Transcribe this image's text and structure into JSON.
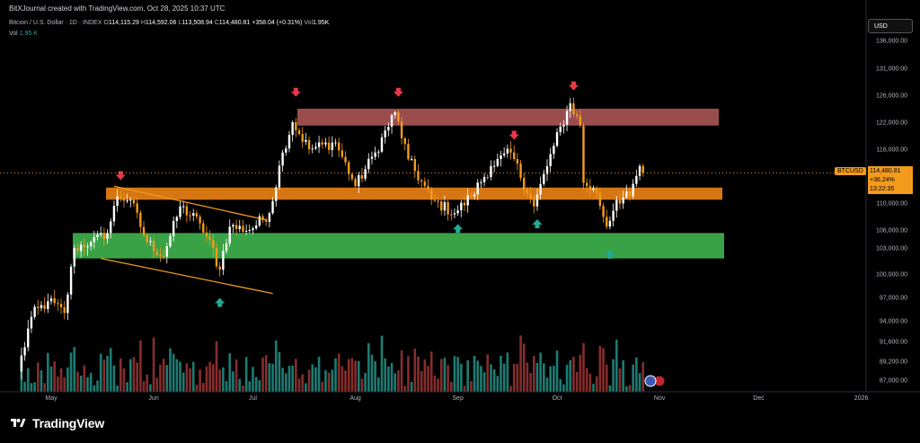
{
  "header": {
    "author_line": "BitXJournal created with TradingView.com, Oct 28, 2025 10:37 UTC"
  },
  "legend": {
    "symbol_line": "Bitcoin / U.S. Dollar · 1D · INDEX",
    "open_label": "O",
    "open_value": "114,115.29",
    "high_label": "H",
    "high_value": "114,592.06",
    "low_label": "L",
    "low_value": "113,508.94",
    "close_label": "C",
    "close_value": "114,480.81",
    "change": "+358.04 (+0.31%)",
    "vol_label": "Vol",
    "vol_value": "1.95K",
    "vol_line_label": "Vol",
    "vol_line_value": "1.95 K"
  },
  "currency_button": "USD",
  "price_badge": {
    "symbol": "BTCUSD",
    "price": "114,480.81",
    "change_pct": "+36.24%",
    "countdown": "13:22:35"
  },
  "footer": {
    "brand": "TradingView"
  },
  "colors": {
    "up": "#ffffff",
    "down": "#f29b1d",
    "vol_up": "#26a69a",
    "vol_down": "#b33c3c",
    "resistance_zone": "#b55a5a",
    "mid_zone": "#e07c14",
    "support_zone": "#3dab4a",
    "channel": "#f29b1d",
    "arrow_down": "#e63a46",
    "arrow_up": "#22ab94"
  },
  "chart_data": {
    "type": "candlestick",
    "title": "Bitcoin / U.S. Dollar · 1D · INDEX",
    "xlabel": "",
    "ylabel": "",
    "x_ticks": [
      "May",
      "Jun",
      "Jul",
      "Aug",
      "Sep",
      "Oct",
      "Nov",
      "Dec",
      "2026"
    ],
    "y_ticks": [
      "136,000.00",
      "131,000.00",
      "126,000.00",
      "122,000.00",
      "118,000.00",
      "114,000.00",
      "110,000.00",
      "106,000.00",
      "103,000.00",
      "100,000.00",
      "97,000.00",
      "94,000.00",
      "91,600.00",
      "89,200.00",
      "87,000.00"
    ],
    "ylim": [
      86000,
      138000
    ],
    "last_price": 114480.81,
    "price_keypoints": [
      [
        "2025-04-22",
        88000
      ],
      [
        "2025-04-26",
        94500
      ],
      [
        "2025-05-01",
        96500
      ],
      [
        "2025-05-06",
        95000
      ],
      [
        "2025-05-09",
        103000
      ],
      [
        "2025-05-14",
        104000
      ],
      [
        "2025-05-19",
        105500
      ],
      [
        "2025-05-22",
        111000
      ],
      [
        "2025-05-26",
        110500
      ],
      [
        "2025-05-31",
        104000
      ],
      [
        "2025-06-05",
        102000
      ],
      [
        "2025-06-10",
        109500
      ],
      [
        "2025-06-16",
        107000
      ],
      [
        "2025-06-22",
        100500
      ],
      [
        "2025-06-25",
        106500
      ],
      [
        "2025-07-01",
        106000
      ],
      [
        "2025-07-07",
        108500
      ],
      [
        "2025-07-11",
        117500
      ],
      [
        "2025-07-14",
        122000
      ],
      [
        "2025-07-19",
        118000
      ],
      [
        "2025-07-27",
        119000
      ],
      [
        "2025-08-02",
        112500
      ],
      [
        "2025-08-08",
        117500
      ],
      [
        "2025-08-14",
        123500
      ],
      [
        "2025-08-18",
        116500
      ],
      [
        "2025-08-25",
        110500
      ],
      [
        "2025-09-01",
        108500
      ],
      [
        "2025-09-06",
        111000
      ],
      [
        "2025-09-12",
        115500
      ],
      [
        "2025-09-18",
        117500
      ],
      [
        "2025-09-25",
        109500
      ],
      [
        "2025-10-01",
        118500
      ],
      [
        "2025-10-06",
        124800
      ],
      [
        "2025-10-09",
        121500
      ],
      [
        "2025-10-10",
        113000
      ],
      [
        "2025-10-14",
        111500
      ],
      [
        "2025-10-17",
        106500
      ],
      [
        "2025-10-20",
        110500
      ],
      [
        "2025-10-24",
        111000
      ],
      [
        "2025-10-27",
        115500
      ],
      [
        "2025-10-28",
        114480.81
      ]
    ],
    "zones": [
      {
        "from": 121500,
        "to": 124000,
        "color": "resistance_zone"
      },
      {
        "from": 110500,
        "to": 112300,
        "color": "mid_zone"
      },
      {
        "from": 101800,
        "to": 105500,
        "color": "support_zone"
      }
    ],
    "channel_lines": [
      [
        [
          "2025-05-20",
          112500
        ],
        [
          "2025-07-05",
          107500
        ]
      ],
      [
        [
          "2025-05-16",
          101800
        ],
        [
          "2025-07-07",
          97500
        ]
      ]
    ],
    "arrows_down": [
      [
        "2025-05-22",
        113800
      ],
      [
        "2025-07-14",
        126200
      ],
      [
        "2025-08-14",
        126200
      ],
      [
        "2025-09-18",
        119800
      ],
      [
        "2025-10-06",
        127400
      ]
    ],
    "arrows_up": [
      [
        "2025-06-21",
        96600
      ],
      [
        "2025-09-01",
        106500
      ],
      [
        "2025-09-25",
        107200
      ],
      [
        "2025-10-17",
        102500
      ]
    ]
  }
}
